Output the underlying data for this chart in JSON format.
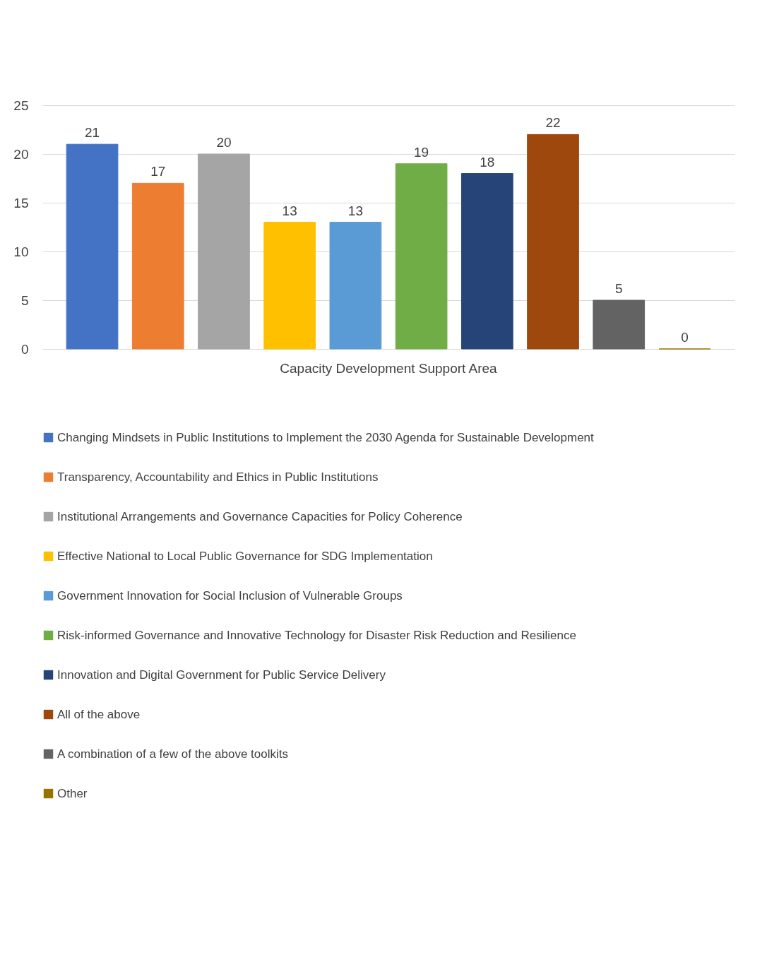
{
  "chart_data": {
    "type": "bar",
    "categories": [
      "Capacity Development Support Area"
    ],
    "ylim": [
      0,
      25
    ],
    "yticks": [
      0,
      5,
      10,
      15,
      20,
      25
    ],
    "grid": "y",
    "legend": "bottom",
    "data_labels": true,
    "series": [
      {
        "name": "Changing Mindsets in Public Institutions to Implement the 2030 Agenda for Sustainable Development",
        "color": "#4472c4",
        "values": [
          21
        ]
      },
      {
        "name": "Transparency, Accountability and Ethics in Public Institutions",
        "color": "#ed7d31",
        "values": [
          17
        ]
      },
      {
        "name": "Institutional Arrangements and Governance Capacities for Policy Coherence",
        "color": "#a5a5a5",
        "values": [
          20
        ]
      },
      {
        "name": "Effective National to Local Public Governance for SDG Implementation",
        "color": "#ffc000",
        "values": [
          13
        ]
      },
      {
        "name": "Government Innovation for Social Inclusion of Vulnerable Groups",
        "color": "#5b9bd5",
        "values": [
          13
        ]
      },
      {
        "name": "Risk-informed Governance and Innovative Technology for Disaster Risk Reduction and Resilience",
        "color": "#70ad47",
        "values": [
          19
        ]
      },
      {
        "name": "Innovation and Digital Government for Public Service Delivery",
        "color": "#264478",
        "values": [
          18
        ]
      },
      {
        "name": "All of the above",
        "color": "#9e480e",
        "values": [
          22
        ]
      },
      {
        "name": "A combination of a few of the above toolkits",
        "color": "#636363",
        "values": [
          5
        ]
      },
      {
        "name": "Other",
        "color": "#997300",
        "values": [
          0
        ]
      }
    ]
  }
}
